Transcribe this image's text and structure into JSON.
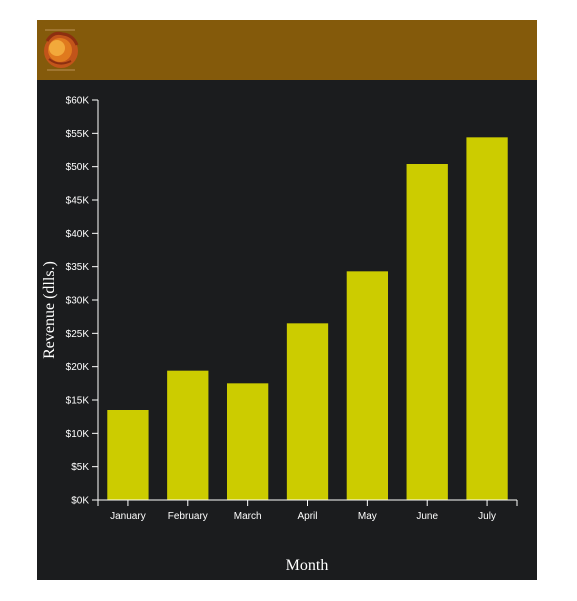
{
  "colors": {
    "header_bg": "#845a0b",
    "chart_bg": "#1b1c1e",
    "bar": "#cccc00",
    "axis": "#ffffff",
    "text": "#ffffff"
  },
  "logo": {
    "icon": "lion-head-logo-icon"
  },
  "chart_data": {
    "type": "bar",
    "title": "",
    "xlabel": "Month",
    "ylabel": "Revenue (dlls.)",
    "categories": [
      "January",
      "February",
      "March",
      "April",
      "May",
      "June",
      "July"
    ],
    "values": [
      13500,
      19400,
      17500,
      26500,
      34300,
      50400,
      54400
    ],
    "ylim": [
      0,
      60000
    ],
    "y_ticks": [
      0,
      5000,
      10000,
      15000,
      20000,
      25000,
      30000,
      35000,
      40000,
      45000,
      50000,
      55000,
      60000
    ],
    "y_tick_labels": [
      "$0K",
      "$5K",
      "$10K",
      "$15K",
      "$20K",
      "$25K",
      "$30K",
      "$35K",
      "$40K",
      "$45K",
      "$50K",
      "$55K",
      "$60K"
    ],
    "grid": false,
    "legend": "none"
  }
}
